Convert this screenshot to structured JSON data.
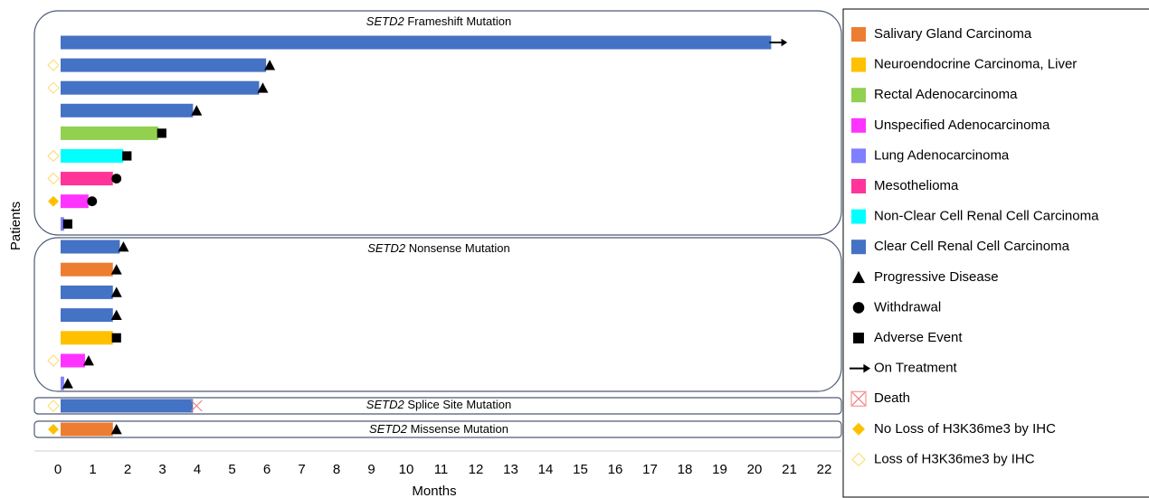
{
  "chart_data": {
    "type": "swimmer",
    "xlabel": "Months",
    "ylabel": "Patients",
    "xlim": [
      0,
      22
    ],
    "xticks": [
      0,
      1,
      2,
      3,
      4,
      5,
      6,
      7,
      8,
      9,
      10,
      11,
      12,
      13,
      14,
      15,
      16,
      17,
      18,
      19,
      20,
      21,
      22
    ],
    "histologies": [
      {
        "name": "Salivary Gland Carcinoma",
        "color": "#ed7d31"
      },
      {
        "name": "Neuroendocrine Carcinoma, Liver",
        "color": "#ffc000"
      },
      {
        "name": "Rectal Adenocarcinoma",
        "color": "#92d050"
      },
      {
        "name": "Unspecified Adenocarcinoma",
        "color": "#ff33ff"
      },
      {
        "name": "Lung Adenocarcinoma",
        "color": "#7f7fff"
      },
      {
        "name": "Mesothelioma",
        "color": "#ff3399"
      },
      {
        "name": "Non-Clear Cell Renal Cell Carcinoma",
        "color": "#00ffff"
      },
      {
        "name": "Clear Cell Renal Cell Carcinoma",
        "color": "#4472c4"
      }
    ],
    "markers": [
      {
        "name": "Progressive Disease"
      },
      {
        "name": "Withdrawal"
      },
      {
        "name": "Adverse Event"
      },
      {
        "name": "On Treatment"
      },
      {
        "name": "Death"
      },
      {
        "name": "No Loss of H3K36me3 by IHC"
      },
      {
        "name": "Loss of H3K36me3 by IHC"
      }
    ],
    "groups": [
      {
        "gene": "SETD2",
        "label": "Frameshift Mutation",
        "patients": [
          {
            "histology": "Clear Cell Renal Cell Carcinoma",
            "months": 20.4,
            "event": "On Treatment",
            "ihc": null
          },
          {
            "histology": "Clear Cell Renal Cell Carcinoma",
            "months": 5.9,
            "event": "Progressive Disease",
            "ihc": "Loss of H3K36me3 by IHC"
          },
          {
            "histology": "Clear Cell Renal Cell Carcinoma",
            "months": 5.7,
            "event": "Progressive Disease",
            "ihc": "Loss of H3K36me3 by IHC"
          },
          {
            "histology": "Clear Cell Renal Cell Carcinoma",
            "months": 3.8,
            "event": "Progressive Disease",
            "ihc": null
          },
          {
            "histology": "Rectal Adenocarcinoma",
            "months": 2.8,
            "event": "Adverse Event",
            "ihc": null
          },
          {
            "histology": "Non-Clear Cell Renal Cell Carcinoma",
            "months": 1.8,
            "event": "Adverse Event",
            "ihc": "Loss of H3K36me3 by IHC"
          },
          {
            "histology": "Mesothelioma",
            "months": 1.5,
            "event": "Withdrawal",
            "ihc": "Loss of H3K36me3 by IHC"
          },
          {
            "histology": "Unspecified Adenocarcinoma",
            "months": 0.8,
            "event": "Withdrawal",
            "ihc": "No Loss of H3K36me3 by IHC"
          },
          {
            "histology": "Lung Adenocarcinoma",
            "months": 0.1,
            "event": "Adverse Event",
            "ihc": null
          }
        ]
      },
      {
        "gene": "SETD2",
        "label": "Nonsense Mutation",
        "patients": [
          {
            "histology": "Clear Cell Renal Cell Carcinoma",
            "months": 1.7,
            "event": "Progressive Disease",
            "ihc": null
          },
          {
            "histology": "Salivary Gland Carcinoma",
            "months": 1.5,
            "event": "Progressive Disease",
            "ihc": null
          },
          {
            "histology": "Clear Cell Renal Cell Carcinoma",
            "months": 1.5,
            "event": "Progressive Disease",
            "ihc": null
          },
          {
            "histology": "Clear Cell Renal Cell Carcinoma",
            "months": 1.5,
            "event": "Progressive Disease",
            "ihc": null
          },
          {
            "histology": "Neuroendocrine Carcinoma, Liver",
            "months": 1.5,
            "event": "Adverse Event",
            "ihc": null
          },
          {
            "histology": "Unspecified Adenocarcinoma",
            "months": 0.7,
            "event": "Progressive Disease",
            "ihc": "Loss of H3K36me3 by IHC"
          },
          {
            "histology": "Lung Adenocarcinoma",
            "months": 0.1,
            "event": "Progressive Disease",
            "ihc": null
          }
        ]
      },
      {
        "gene": "SETD2",
        "label": "Splice Site Mutation",
        "patients": [
          {
            "histology": "Clear Cell Renal Cell Carcinoma",
            "months": 3.8,
            "event": "Death",
            "ihc": "Loss of H3K36me3 by IHC"
          }
        ]
      },
      {
        "gene": "SETD2",
        "label": "Missense Mutation",
        "patients": [
          {
            "histology": "Salivary Gland Carcinoma",
            "months": 1.5,
            "event": "Progressive Disease",
            "ihc": "No Loss of H3K36me3 by IHC"
          }
        ]
      }
    ]
  }
}
